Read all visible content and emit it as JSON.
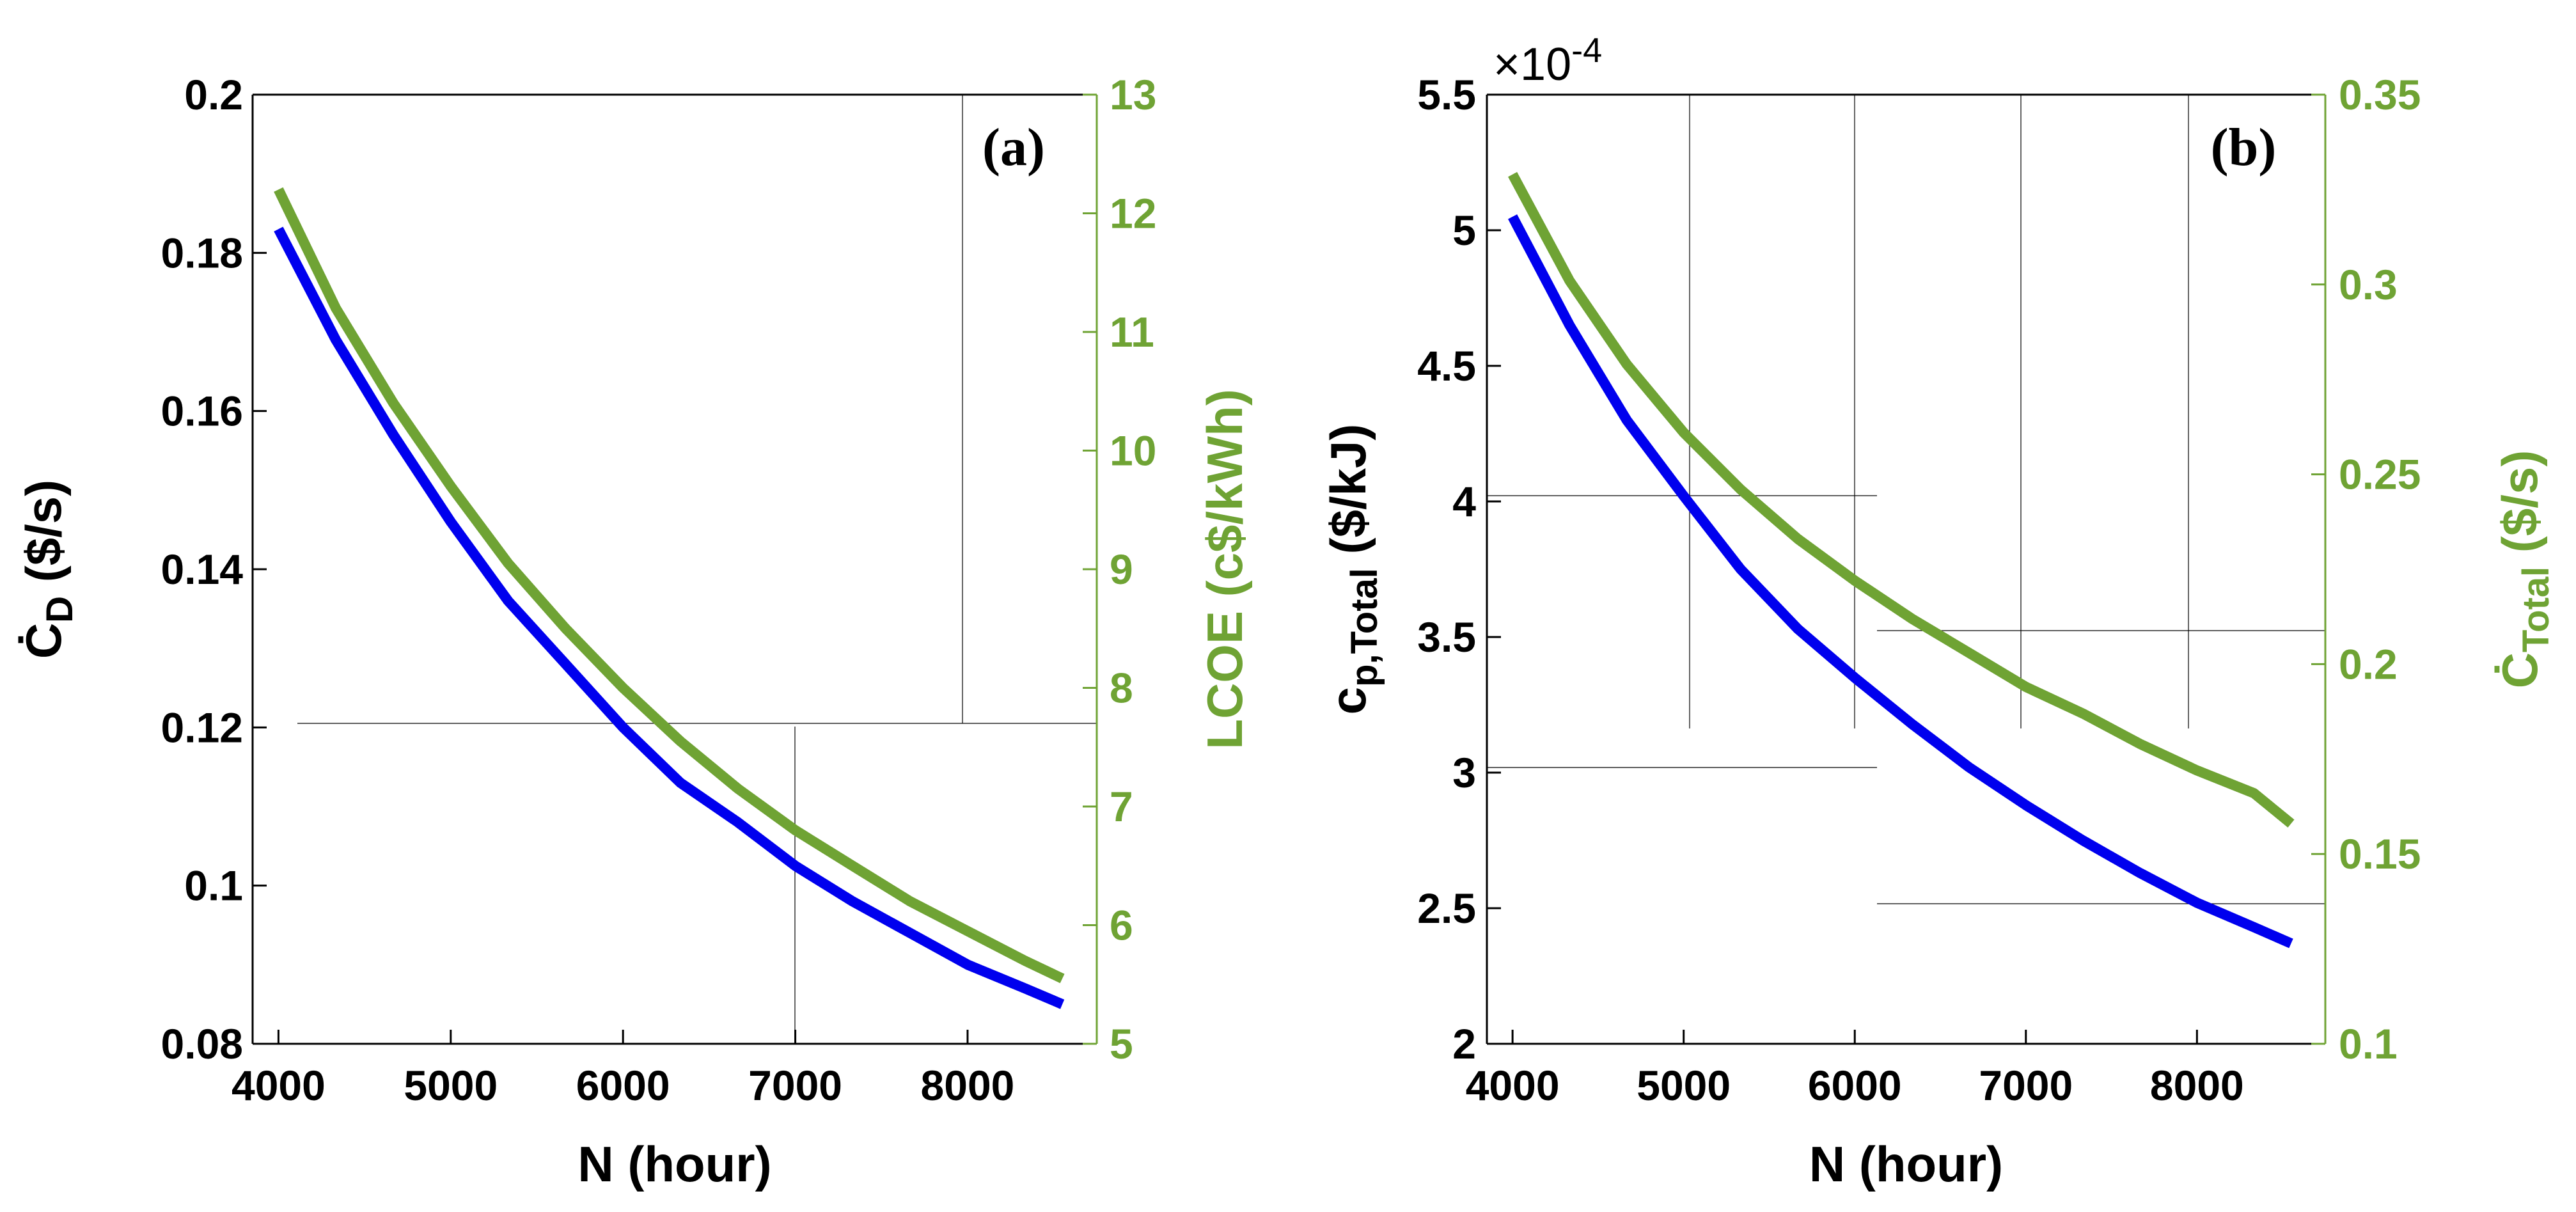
{
  "chart_data": [
    {
      "type": "line",
      "panel_label": "(a)",
      "xlabel": "N (hour)",
      "ylabel_left": {
        "symbol": "Ċ",
        "subscript": "D",
        "unit": "($/s)"
      },
      "ylabel_right": "LCOE (c$/kWh)",
      "xlim": [
        3850,
        8750
      ],
      "ylim_left": [
        0.08,
        0.2
      ],
      "ylim_right": [
        5,
        13
      ],
      "xticks": [
        4000,
        5000,
        6000,
        7000,
        8000
      ],
      "xtick_labels": [
        "4000",
        "5000",
        "6000",
        "7000",
        "8000"
      ],
      "yticks_left": [
        0.08,
        0.1,
        0.12,
        0.14,
        0.16,
        0.18,
        0.2
      ],
      "ytick_labels_left": [
        "0.08",
        "0.1",
        "0.12",
        "0.14",
        "0.16",
        "0.18",
        "0.2"
      ],
      "yticks_right": [
        5,
        6,
        7,
        8,
        9,
        10,
        11,
        12,
        13
      ],
      "ytick_labels_right": [
        "5",
        "6",
        "7",
        "8",
        "9",
        "10",
        "11",
        "12",
        "13"
      ],
      "series": [
        {
          "name": "Ċ_D ($/s)",
          "axis": "left",
          "color": "#0000ee",
          "x": [
            4000,
            4333,
            4667,
            5000,
            5333,
            5667,
            6000,
            6333,
            6667,
            7000,
            7333,
            7667,
            8000,
            8333,
            8550
          ],
          "values": [
            0.183,
            0.169,
            0.157,
            0.146,
            0.136,
            0.128,
            0.12,
            0.113,
            0.108,
            0.1025,
            0.098,
            0.094,
            0.09,
            0.087,
            0.085
          ]
        },
        {
          "name": "LCOE (c$/kWh)",
          "axis": "right",
          "color": "#6fa334",
          "x": [
            4000,
            4333,
            4667,
            5000,
            5333,
            5667,
            6000,
            6333,
            6667,
            7000,
            7333,
            7667,
            8000,
            8333,
            8550
          ],
          "values": [
            12.2,
            11.2,
            10.4,
            9.7,
            9.05,
            8.5,
            8.0,
            7.55,
            7.15,
            6.8,
            6.5,
            6.2,
            5.95,
            5.7,
            5.55
          ]
        }
      ]
    },
    {
      "type": "line",
      "panel_label": "(b)",
      "xlabel": "N (hour)",
      "ylabel_left": {
        "symbol": "c",
        "subscript": "p,Total",
        "unit": "($/kJ)"
      },
      "ylabel_right": {
        "symbol": "Ċ",
        "subscript": "Total",
        "unit": "($/s)"
      },
      "exponent_label": {
        "base": "×10",
        "power": "-4"
      },
      "xlim": [
        3850,
        8750
      ],
      "ylim_left": [
        2.0,
        5.5
      ],
      "ylim_right": [
        0.1,
        0.35
      ],
      "xticks": [
        4000,
        5000,
        6000,
        7000,
        8000
      ],
      "xtick_labels": [
        "4000",
        "5000",
        "6000",
        "7000",
        "8000"
      ],
      "yticks_left": [
        2,
        2.5,
        3,
        3.5,
        4,
        4.5,
        5,
        5.5
      ],
      "ytick_labels_left": [
        "2",
        "2.5",
        "3",
        "3.5",
        "4",
        "4.5",
        "5",
        "5.5"
      ],
      "yticks_right": [
        0.1,
        0.15,
        0.2,
        0.25,
        0.3,
        0.35
      ],
      "ytick_labels_right": [
        "0.1",
        "0.15",
        "0.2",
        "0.25",
        "0.3",
        "0.35"
      ],
      "series": [
        {
          "name": "c_p,Total ($/kJ)",
          "axis": "left",
          "color": "#0000ee",
          "x": [
            4000,
            4333,
            4667,
            5000,
            5333,
            5667,
            6000,
            6333,
            6667,
            7000,
            7333,
            7667,
            8000,
            8333,
            8550
          ],
          "values": [
            5.05,
            4.65,
            4.3,
            4.02,
            3.75,
            3.53,
            3.35,
            3.18,
            3.02,
            2.88,
            2.75,
            2.63,
            2.52,
            2.43,
            2.37
          ]
        },
        {
          "name": "Ċ_Total ($/s)",
          "axis": "right",
          "color": "#6fa334",
          "x": [
            4000,
            4333,
            4667,
            5000,
            5333,
            5667,
            6000,
            6333,
            6667,
            7000,
            7333,
            7667,
            8000,
            8333,
            8550
          ],
          "values": [
            0.329,
            0.301,
            0.279,
            0.261,
            0.246,
            0.233,
            0.222,
            0.212,
            0.203,
            0.194,
            0.187,
            0.179,
            0.172,
            0.166,
            0.158
          ]
        }
      ]
    }
  ]
}
